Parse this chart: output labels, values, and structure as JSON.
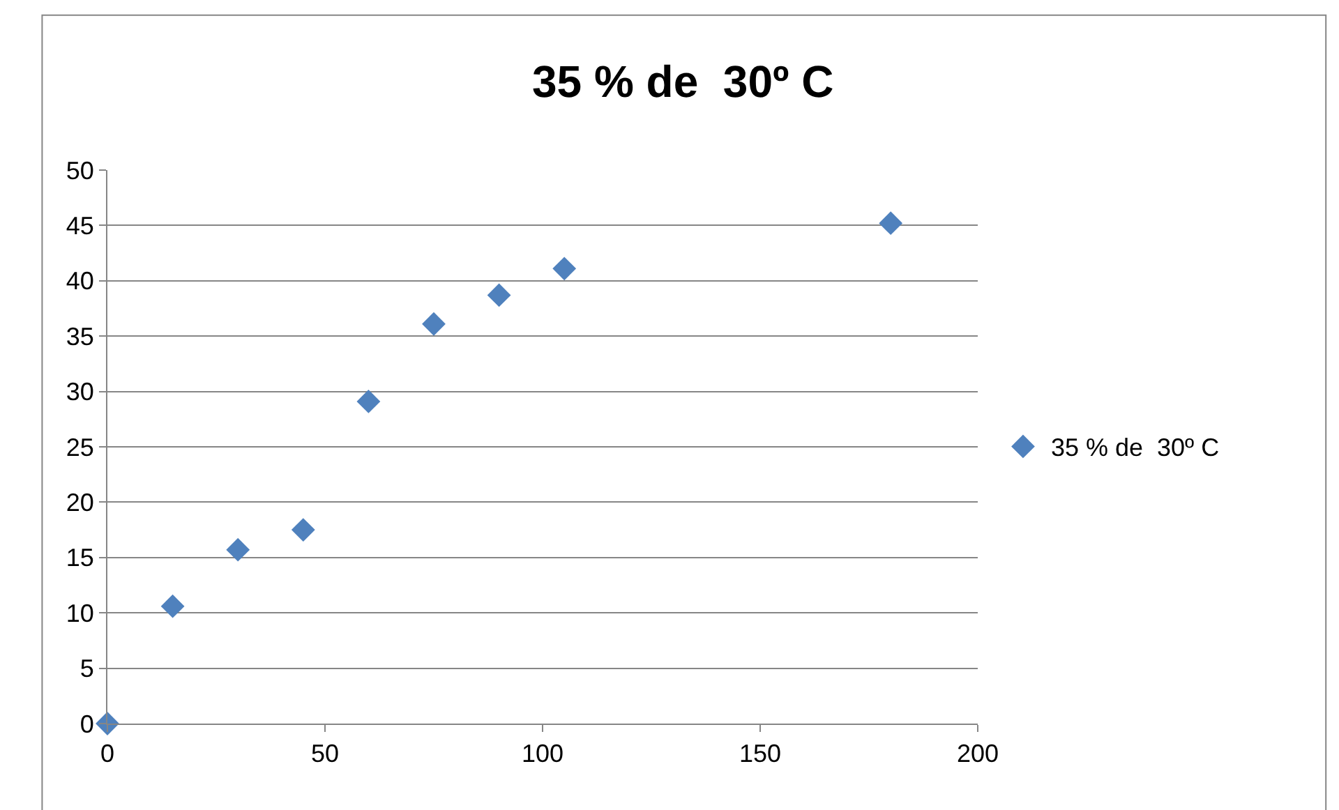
{
  "chart_data": {
    "type": "scatter",
    "title": "35 % de  30º C",
    "x": [
      0,
      15,
      30,
      45,
      60,
      75,
      90,
      105,
      180
    ],
    "series": [
      {
        "name": "35 % de  30º C",
        "color": "#4f81bd",
        "values": [
          0,
          10.6,
          15.7,
          17.5,
          29.1,
          36.1,
          38.7,
          41.1,
          45.2
        ]
      }
    ],
    "xlim": [
      0,
      200
    ],
    "xticks": [
      0,
      50,
      100,
      150,
      200
    ],
    "ylim": [
      0,
      50
    ],
    "yticks": [
      0,
      5,
      10,
      15,
      20,
      25,
      30,
      35,
      40,
      45,
      50
    ],
    "grid": "y",
    "legend": "right",
    "marker": "diamond"
  }
}
